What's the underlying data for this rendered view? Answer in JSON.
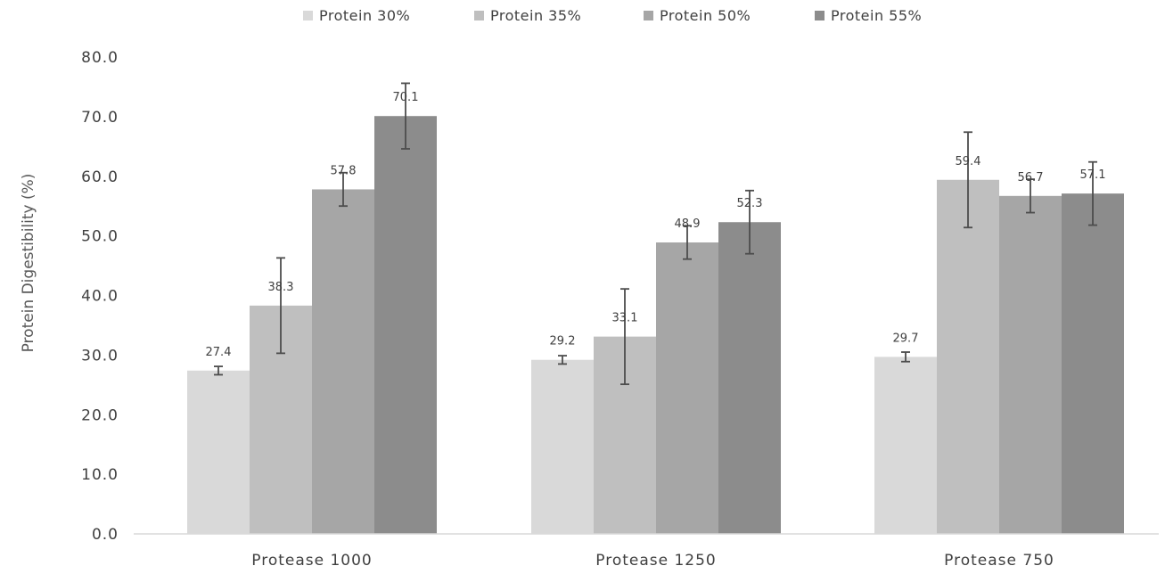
{
  "chart_data": {
    "type": "bar",
    "title": "",
    "xlabel": "",
    "ylabel": "Protein Digestibility (%)",
    "ylim": [
      0,
      80
    ],
    "yticks": [
      "0.0",
      "10.0",
      "20.0",
      "30.0",
      "40.0",
      "50.0",
      "60.0",
      "70.0",
      "80.0"
    ],
    "grid": false,
    "legend_position": "top",
    "categories": [
      "Protease 1000",
      "Protease 1250",
      "Protease 750"
    ],
    "series": [
      {
        "name": "Protein 30%",
        "color": "#d9d9d9",
        "values": [
          27.4,
          29.2,
          29.7
        ],
        "labels": [
          "27.4",
          "29.2",
          "29.7"
        ],
        "error": [
          0.7,
          0.7,
          0.8
        ]
      },
      {
        "name": "Protein 35%",
        "color": "#bfbfbf",
        "values": [
          38.3,
          33.1,
          59.4
        ],
        "labels": [
          "38.3",
          "33.1",
          "59.4"
        ],
        "error": [
          8.0,
          8.0,
          8.0
        ]
      },
      {
        "name": "Protein 50%",
        "color": "#a6a6a6",
        "values": [
          57.8,
          48.9,
          56.7
        ],
        "labels": [
          "57.8",
          "48.9",
          "56.7"
        ],
        "error": [
          2.8,
          2.8,
          2.8
        ]
      },
      {
        "name": "Protein 55%",
        "color": "#8c8c8c",
        "values": [
          70.1,
          52.3,
          57.1
        ],
        "labels": [
          "70.1",
          "52.3",
          "57.1"
        ],
        "error": [
          5.5,
          5.3,
          5.3
        ]
      }
    ]
  }
}
